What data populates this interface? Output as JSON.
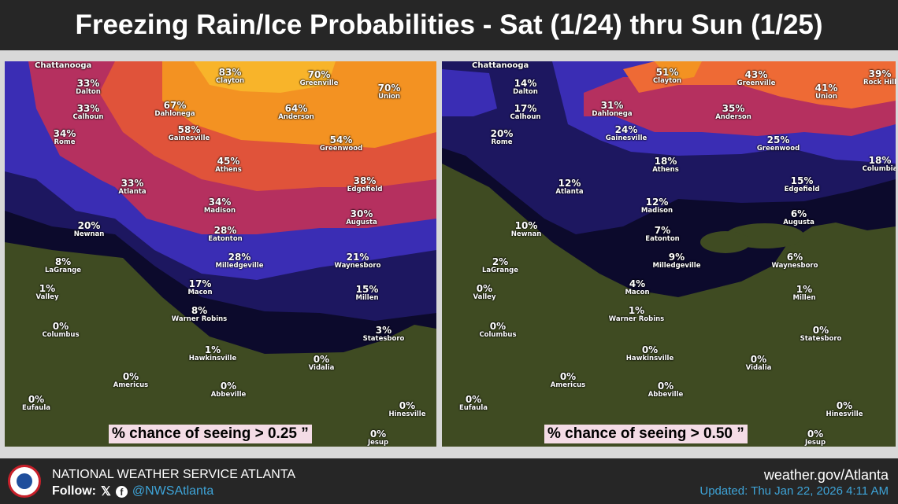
{
  "header": {
    "title": "Freezing Rain/Ice Probabilities - Sat (1/24) thru Sun (1/25)"
  },
  "colors": {
    "navy": "#0c0a2c",
    "dark_purple": "#1d1760",
    "blue": "#3a2db4",
    "magenta": "#b5305f",
    "red_orange": "#e0533a",
    "orange": "#f39222",
    "yellow": "#f8b42a",
    "land": "#3f4b22"
  },
  "left_map": {
    "top_label": "Chattanooga",
    "caption": "% chance of seeing > 0.25 ”",
    "cities": [
      {
        "name": "Dalton",
        "value": "33%"
      },
      {
        "name": "Calhoun",
        "value": "33%"
      },
      {
        "name": "Rome",
        "value": "34%"
      },
      {
        "name": "Clayton",
        "value": "83%"
      },
      {
        "name": "Dahlonega",
        "value": "67%"
      },
      {
        "name": "Greenville",
        "value": "70%"
      },
      {
        "name": "Union",
        "value": "70%"
      },
      {
        "name": "Anderson",
        "value": "64%"
      },
      {
        "name": "Gainesville",
        "value": "58%"
      },
      {
        "name": "Greenwood",
        "value": "54%"
      },
      {
        "name": "Athens",
        "value": "45%"
      },
      {
        "name": "Atlanta",
        "value": "33%"
      },
      {
        "name": "Edgefield",
        "value": "38%"
      },
      {
        "name": "Madison",
        "value": "34%"
      },
      {
        "name": "Augusta",
        "value": "30%"
      },
      {
        "name": "Newnan",
        "value": "20%"
      },
      {
        "name": "Eatonton",
        "value": "28%"
      },
      {
        "name": "Milledgeville",
        "value": "28%"
      },
      {
        "name": "Waynesboro",
        "value": "21%"
      },
      {
        "name": "LaGrange",
        "value": "8%"
      },
      {
        "name": "Macon",
        "value": "17%"
      },
      {
        "name": "Millen",
        "value": "15%"
      },
      {
        "name": "Valley",
        "value": "1%"
      },
      {
        "name": "Warner Robins",
        "value": "8%"
      },
      {
        "name": "Columbus",
        "value": "0%"
      },
      {
        "name": "Statesboro",
        "value": "3%"
      },
      {
        "name": "Hawkinsville",
        "value": "1%"
      },
      {
        "name": "Vidalia",
        "value": "0%"
      },
      {
        "name": "Americus",
        "value": "0%"
      },
      {
        "name": "Abbeville",
        "value": "0%"
      },
      {
        "name": "Eufaula",
        "value": "0%"
      },
      {
        "name": "Hinesville",
        "value": "0%"
      },
      {
        "name": "Jesup",
        "value": "0%"
      }
    ]
  },
  "right_map": {
    "top_label": "Chattanooga",
    "caption": "% chance of seeing > 0.50 ”",
    "cities": [
      {
        "name": "Dalton",
        "value": "14%"
      },
      {
        "name": "Calhoun",
        "value": "17%"
      },
      {
        "name": "Rome",
        "value": "20%"
      },
      {
        "name": "Clayton",
        "value": "51%"
      },
      {
        "name": "Dahlonega",
        "value": "31%"
      },
      {
        "name": "Greenville",
        "value": "43%"
      },
      {
        "name": "Union",
        "value": "41%"
      },
      {
        "name": "Anderson",
        "value": "35%"
      },
      {
        "name": "Gainesville",
        "value": "24%"
      },
      {
        "name": "Greenwood",
        "value": "25%"
      },
      {
        "name": "Athens",
        "value": "18%"
      },
      {
        "name": "Atlanta",
        "value": "12%"
      },
      {
        "name": "Edgefield",
        "value": "15%"
      },
      {
        "name": "Madison",
        "value": "12%"
      },
      {
        "name": "Augusta",
        "value": "6%"
      },
      {
        "name": "Newnan",
        "value": "10%"
      },
      {
        "name": "Eatonton",
        "value": "7%"
      },
      {
        "name": "Milledgeville",
        "value": "9%"
      },
      {
        "name": "Waynesboro",
        "value": "6%"
      },
      {
        "name": "LaGrange",
        "value": "2%"
      },
      {
        "name": "Macon",
        "value": "4%"
      },
      {
        "name": "Millen",
        "value": "1%"
      },
      {
        "name": "Valley",
        "value": "0%"
      },
      {
        "name": "Warner Robins",
        "value": "1%"
      },
      {
        "name": "Columbus",
        "value": "0%"
      },
      {
        "name": "Statesboro",
        "value": "0%"
      },
      {
        "name": "Hawkinsville",
        "value": "0%"
      },
      {
        "name": "Vidalia",
        "value": "0%"
      },
      {
        "name": "Americus",
        "value": "0%"
      },
      {
        "name": "Abbeville",
        "value": "0%"
      },
      {
        "name": "Eufaula",
        "value": "0%"
      },
      {
        "name": "Hinesville",
        "value": "0%"
      },
      {
        "name": "Jesup",
        "value": "0%"
      },
      {
        "name": "Rock Hill",
        "value": "39%"
      },
      {
        "name": "Columbia",
        "value": "18%"
      }
    ]
  },
  "footer": {
    "org": "NATIONAL WEATHER SERVICE ATLANTA",
    "follow_label": "Follow:",
    "x_icon": "𝕏",
    "facebook_icon": "f",
    "handle": "@NWSAtlanta",
    "site": "weather.gov/Atlanta",
    "updated": "Updated: Thu Jan 22, 2026 4:11 AM"
  }
}
